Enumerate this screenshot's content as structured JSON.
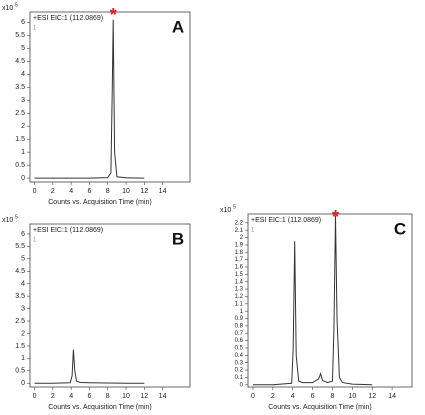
{
  "chart_data": [
    {
      "type": "line",
      "title": "+ESI EIC:1 (112.0869)",
      "panel_label": "A",
      "y_scale_label": "x10",
      "y_scale_exponent": "5",
      "trace_label": "1",
      "marker": "*",
      "marker_color": "#e02020",
      "x_label": "Counts vs. Acquisition Time (min)",
      "x": [
        0,
        2,
        4,
        6,
        8,
        8.35,
        8.5,
        8.6,
        8.75,
        9,
        10,
        12
      ],
      "series": [
        {
          "color": "#333333",
          "values": [
            0,
            0,
            0,
            0,
            0.02,
            0.2,
            3.5,
            6.1,
            1.0,
            0.05,
            0.01,
            0
          ]
        }
      ],
      "xlim": [
        -0.5,
        17
      ],
      "xticks": [
        0,
        2,
        4,
        6,
        8,
        10,
        12,
        14
      ],
      "ylim": [
        -0.15,
        6.4
      ],
      "yticks": [
        0,
        0.5,
        1,
        1.5,
        2,
        2.5,
        3,
        3.5,
        4,
        4.5,
        5,
        5.5,
        6
      ]
    },
    {
      "type": "line",
      "title": "+ESI EIC:1 (112.0869)",
      "panel_label": "B",
      "y_scale_label": "x10",
      "y_scale_exponent": "5",
      "trace_label": "1",
      "x_label": "Counts vs. Acquisition Time (min)",
      "x": [
        0,
        2,
        3.9,
        4.1,
        4.25,
        4.4,
        4.6,
        5,
        6,
        8,
        10,
        12
      ],
      "series": [
        {
          "color": "#333333",
          "values": [
            0,
            0,
            0.02,
            0.3,
            1.35,
            0.5,
            0.08,
            0.03,
            0.02,
            0.01,
            0,
            0
          ]
        }
      ],
      "xlim": [
        -0.5,
        17
      ],
      "xticks": [
        0,
        2,
        4,
        6,
        8,
        10,
        12,
        14
      ],
      "ylim": [
        -0.15,
        6.4
      ],
      "yticks": [
        0,
        0.5,
        1,
        1.5,
        2,
        2.5,
        3,
        3.5,
        4,
        4.5,
        5,
        5.5,
        6
      ]
    },
    {
      "type": "line",
      "title": "+ESI EIC:1 (112.0869)",
      "panel_label": "C",
      "y_scale_label": "x10",
      "y_scale_exponent": "5",
      "trace_label": "1",
      "marker": "*",
      "marker_color": "#e02020",
      "x_label": "Counts vs. Acquisition Time (min)",
      "x": [
        0,
        2,
        3.9,
        4.05,
        4.2,
        4.35,
        4.6,
        5,
        6,
        6.6,
        6.8,
        7,
        7.5,
        8,
        8.15,
        8.3,
        8.45,
        8.7,
        9,
        10,
        12
      ],
      "series": [
        {
          "color": "#333333",
          "values": [
            0,
            0,
            0.02,
            0.5,
            1.95,
            0.4,
            0.05,
            0.03,
            0.03,
            0.08,
            0.15,
            0.06,
            0.03,
            0.05,
            0.8,
            2.3,
            0.9,
            0.1,
            0.03,
            0.01,
            0
          ]
        }
      ],
      "xlim": [
        -0.5,
        16
      ],
      "xticks": [
        0,
        2,
        4,
        6,
        8,
        10,
        12,
        14
      ],
      "ylim": [
        -0.03,
        2.32
      ],
      "yticks": [
        0,
        0.1,
        0.2,
        0.3,
        0.4,
        0.5,
        0.6,
        0.7,
        0.8,
        0.9,
        1,
        1.1,
        1.2,
        1.3,
        1.4,
        1.5,
        1.6,
        1.7,
        1.8,
        1.9,
        2,
        2.1,
        2.2
      ]
    }
  ]
}
